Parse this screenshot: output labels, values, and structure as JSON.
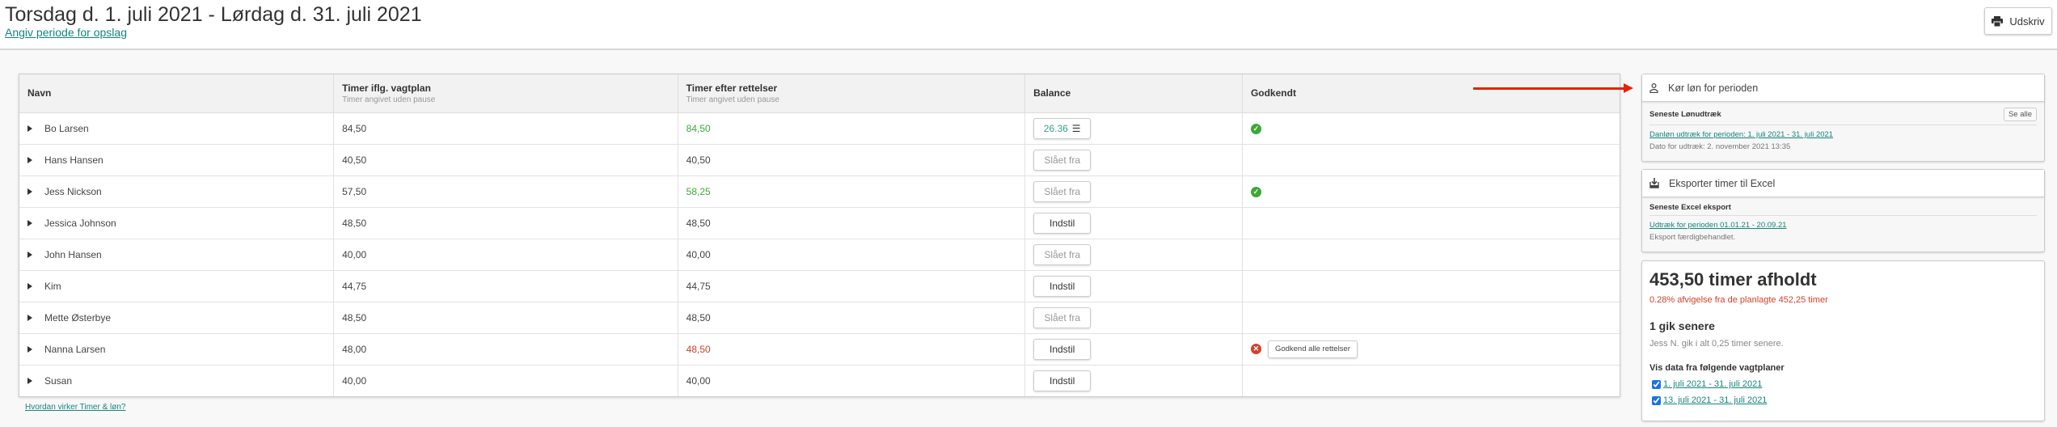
{
  "header": {
    "title": "Torsdag d. 1. juli 2021 - Lørdag d. 31. juli 2021",
    "period_link": "Angiv periode for opslag",
    "print_label": "Udskriv"
  },
  "table": {
    "columns": [
      {
        "label": "Navn",
        "sub": ""
      },
      {
        "label": "Timer iflg. vagtplan",
        "sub": "Timer angivet uden pause"
      },
      {
        "label": "Timer efter rettelser",
        "sub": "Timer angivet uden pause"
      },
      {
        "label": "Balance",
        "sub": ""
      },
      {
        "label": "Godkendt",
        "sub": ""
      }
    ],
    "rows": [
      {
        "name": "Bo Larsen",
        "planned": "84,50",
        "corrected": "84,50",
        "corrected_color": "green",
        "balance": "26.36",
        "balance_type": "value",
        "approved": "ok"
      },
      {
        "name": "Hans Hansen",
        "planned": "40,50",
        "corrected": "40,50",
        "corrected_color": "",
        "balance": "Slået fra",
        "balance_type": "off",
        "approved": ""
      },
      {
        "name": "Jess Nickson",
        "planned": "57,50",
        "corrected": "58,25",
        "corrected_color": "green",
        "balance": "Slået fra",
        "balance_type": "off",
        "approved": "ok"
      },
      {
        "name": "Jessica Johnson",
        "planned": "48,50",
        "corrected": "48,50",
        "corrected_color": "",
        "balance": "Indstil",
        "balance_type": "set",
        "approved": ""
      },
      {
        "name": "John Hansen",
        "planned": "40,00",
        "corrected": "40,00",
        "corrected_color": "",
        "balance": "Slået fra",
        "balance_type": "off",
        "approved": ""
      },
      {
        "name": "Kim",
        "planned": "44,75",
        "corrected": "44,75",
        "corrected_color": "",
        "balance": "Indstil",
        "balance_type": "set",
        "approved": ""
      },
      {
        "name": "Mette Østerbye",
        "planned": "48,50",
        "corrected": "48,50",
        "corrected_color": "",
        "balance": "Slået fra",
        "balance_type": "off",
        "approved": ""
      },
      {
        "name": "Nanna Larsen",
        "planned": "48,00",
        "corrected": "48,50",
        "corrected_color": "red",
        "balance": "Indstil",
        "balance_type": "set",
        "approved": "rejected"
      },
      {
        "name": "Susan",
        "planned": "40,00",
        "corrected": "40,00",
        "corrected_color": "",
        "balance": "Indstil",
        "balance_type": "set",
        "approved": ""
      }
    ],
    "approve_all_label": "Godkend alle rettelser"
  },
  "help_link": "Hvordan virker Timer & løn?",
  "payroll": {
    "title": "Kør løn for perioden",
    "sub_title": "Seneste Lønudtræk",
    "see_all": "Se alle",
    "link": "Danløn udtræk for perioden: 1. juli 2021 - 31. juli 2021",
    "date": "Dato for udtræk: 2. november 2021 13:35"
  },
  "excel": {
    "title": "Eksporter timer til Excel",
    "sub_title": "Seneste Excel eksport",
    "link": "Udtræk for perioden 01.01.21 - 20.09.21",
    "status": "Eksport færdigbehandlet."
  },
  "stats": {
    "hours": "453,50 timer afholdt",
    "deviation": "0.28% afvigelse fra de planlagte 452,25 timer",
    "later_title": "1 gik senere",
    "later_text": "Jess N. gik i alt 0,25 timer senere.",
    "plans_title": "Vis data fra følgende vagtplaner",
    "plans": [
      {
        "label": "1. juli 2021 - 31. juli 2021",
        "checked": true
      },
      {
        "label": "13. juli 2021 - 31. juli 2021",
        "checked": true
      }
    ]
  },
  "colors": {
    "accent": "#14857b",
    "green": "#3aaa35",
    "red": "#d0422a",
    "arrow": "#e8200a"
  }
}
